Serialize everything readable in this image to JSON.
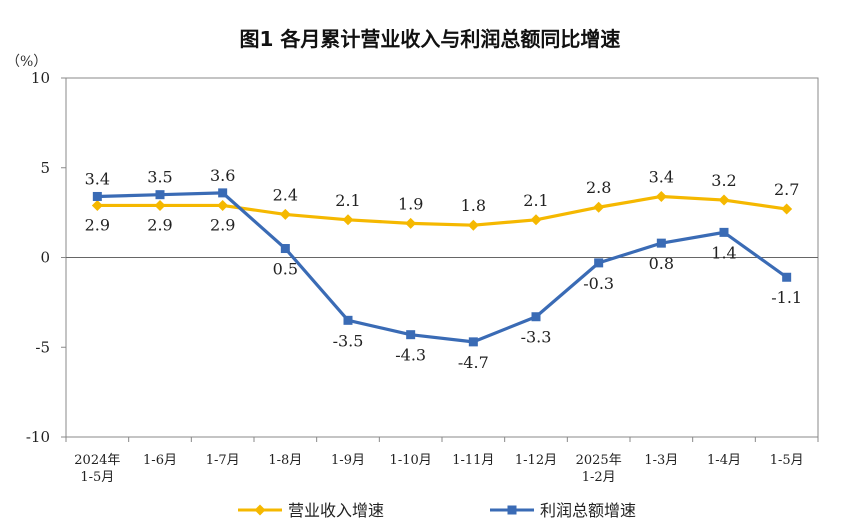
{
  "chart_data": {
    "type": "line",
    "title": "图1  各月累计营业收入与利润总额同比增速",
    "unit_label": "（%）",
    "ylim": [
      -10,
      10
    ],
    "yticks": [
      "10",
      "5",
      "0",
      "-5",
      "-10"
    ],
    "ytick_values": [
      10,
      5,
      0,
      -5,
      -10
    ],
    "categories": [
      [
        "2024年",
        "1-5月"
      ],
      [
        "1-6月"
      ],
      [
        "1-7月"
      ],
      [
        "1-8月"
      ],
      [
        "1-9月"
      ],
      [
        "1-10月"
      ],
      [
        "1-11月"
      ],
      [
        "1-12月"
      ],
      [
        "2025年",
        "1-2月"
      ],
      [
        "1-3月"
      ],
      [
        "1-4月"
      ],
      [
        "1-5月"
      ]
    ],
    "series": [
      {
        "name": "营业收入增速",
        "color": "#F5B800",
        "marker": "diamond",
        "values": [
          2.9,
          2.9,
          2.9,
          2.4,
          2.1,
          1.9,
          1.8,
          2.1,
          2.8,
          3.4,
          3.2,
          2.7
        ],
        "labels": [
          "2.9",
          "2.9",
          "2.9",
          "2.4",
          "2.1",
          "1.9",
          "1.8",
          "2.1",
          "2.8",
          "3.4",
          "3.2",
          "2.7"
        ]
      },
      {
        "name": "利润总额增速",
        "color": "#3A6BB5",
        "marker": "square",
        "values": [
          3.4,
          3.5,
          3.6,
          0.5,
          -3.5,
          -4.3,
          -4.7,
          -3.3,
          -0.3,
          0.8,
          1.4,
          -1.1
        ],
        "labels": [
          "3.4",
          "3.5",
          "3.6",
          "0.5",
          "-3.5",
          "-4.3",
          "-4.7",
          "-3.3",
          "-0.3",
          "0.8",
          "1.4",
          "-1.1"
        ]
      }
    ],
    "grid": false,
    "legend_position": "bottom"
  }
}
